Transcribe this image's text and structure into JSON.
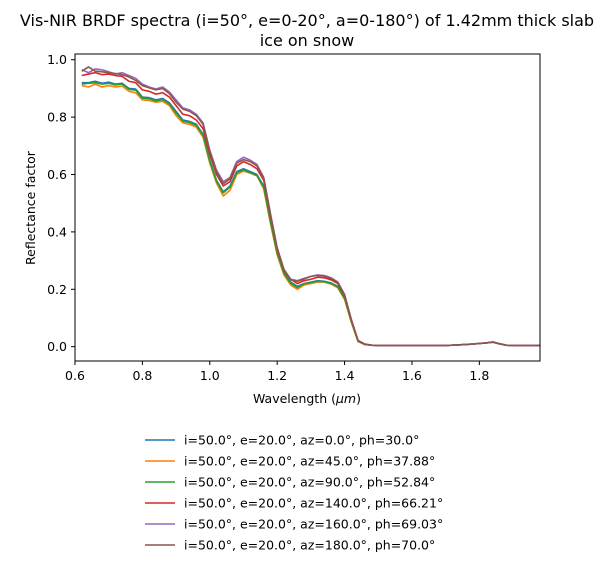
{
  "chart_data": {
    "type": "line",
    "title_lines": [
      "Vis-NIR BRDF spectra (i=50°, e=0-20°, a=0-180°) of 1.42mm thick slab",
      "ice on snow"
    ],
    "xlabel_prefix": "Wavelength (",
    "xlabel_unit": "μm",
    "xlabel_suffix": ")",
    "ylabel": "Reflectance factor",
    "xlim": [
      0.6,
      1.98
    ],
    "ylim": [
      -0.05,
      1.02
    ],
    "xticks": [
      0.6,
      0.8,
      1.0,
      1.2,
      1.4,
      1.6,
      1.8
    ],
    "xtick_labels": [
      "0.6",
      "0.8",
      "1.0",
      "1.2",
      "1.4",
      "1.6",
      "1.8"
    ],
    "yticks": [
      0.0,
      0.2,
      0.4,
      0.6,
      0.8,
      1.0
    ],
    "ytick_labels": [
      "0.0",
      "0.2",
      "0.4",
      "0.6",
      "0.8",
      "1.0"
    ],
    "grid": false,
    "legend_placement": "below",
    "x": [
      0.62,
      0.64,
      0.66,
      0.68,
      0.7,
      0.72,
      0.74,
      0.76,
      0.78,
      0.8,
      0.82,
      0.84,
      0.86,
      0.88,
      0.9,
      0.92,
      0.94,
      0.96,
      0.98,
      1.0,
      1.02,
      1.04,
      1.06,
      1.08,
      1.1,
      1.12,
      1.14,
      1.16,
      1.18,
      1.2,
      1.22,
      1.24,
      1.26,
      1.28,
      1.3,
      1.32,
      1.34,
      1.36,
      1.38,
      1.4,
      1.42,
      1.44,
      1.46,
      1.48,
      1.5,
      1.55,
      1.6,
      1.65,
      1.7,
      1.75,
      1.78,
      1.8,
      1.82,
      1.84,
      1.86,
      1.88,
      1.9,
      1.95,
      1.98
    ],
    "series": [
      {
        "name": "i=50.0°, e=20.0°, az=0.0°, ph=30.0°",
        "color": "#1f77b4",
        "values": [
          0.92,
          0.92,
          0.925,
          0.918,
          0.922,
          0.915,
          0.918,
          0.9,
          0.898,
          0.87,
          0.868,
          0.86,
          0.865,
          0.85,
          0.82,
          0.79,
          0.785,
          0.775,
          0.74,
          0.65,
          0.58,
          0.54,
          0.56,
          0.61,
          0.62,
          0.61,
          0.6,
          0.56,
          0.44,
          0.33,
          0.26,
          0.225,
          0.21,
          0.22,
          0.225,
          0.23,
          0.228,
          0.222,
          0.21,
          0.17,
          0.09,
          0.02,
          0.008,
          0.005,
          0.004,
          0.004,
          0.004,
          0.004,
          0.004,
          0.007,
          0.009,
          0.011,
          0.013,
          0.016,
          0.01,
          0.005,
          0.004,
          0.004,
          0.004
        ]
      },
      {
        "name": "i=50.0°, e=20.0°, az=45.0°, ph=37.88°",
        "color": "#ff7f0e",
        "values": [
          0.91,
          0.905,
          0.915,
          0.905,
          0.91,
          0.905,
          0.908,
          0.89,
          0.885,
          0.86,
          0.858,
          0.852,
          0.855,
          0.84,
          0.805,
          0.78,
          0.775,
          0.765,
          0.73,
          0.64,
          0.57,
          0.525,
          0.545,
          0.6,
          0.612,
          0.605,
          0.595,
          0.55,
          0.43,
          0.32,
          0.25,
          0.215,
          0.2,
          0.215,
          0.22,
          0.225,
          0.225,
          0.218,
          0.205,
          0.165,
          0.085,
          0.018,
          0.007,
          0.005,
          0.004,
          0.004,
          0.004,
          0.004,
          0.004,
          0.007,
          0.009,
          0.011,
          0.013,
          0.015,
          0.01,
          0.005,
          0.004,
          0.004,
          0.004
        ]
      },
      {
        "name": "i=50.0°, e=20.0°, az=90.0°, ph=52.84°",
        "color": "#2ca02c",
        "values": [
          0.915,
          0.918,
          0.92,
          0.915,
          0.918,
          0.912,
          0.915,
          0.897,
          0.894,
          0.866,
          0.864,
          0.856,
          0.861,
          0.846,
          0.814,
          0.786,
          0.781,
          0.771,
          0.736,
          0.646,
          0.576,
          0.536,
          0.556,
          0.606,
          0.616,
          0.606,
          0.596,
          0.556,
          0.436,
          0.326,
          0.256,
          0.221,
          0.206,
          0.219,
          0.223,
          0.228,
          0.226,
          0.22,
          0.208,
          0.168,
          0.088,
          0.019,
          0.008,
          0.005,
          0.004,
          0.004,
          0.004,
          0.004,
          0.004,
          0.007,
          0.009,
          0.011,
          0.013,
          0.016,
          0.01,
          0.005,
          0.004,
          0.004,
          0.004
        ]
      },
      {
        "name": "i=50.0°, e=20.0°, az=140.0°, ph=66.21°",
        "color": "#d62728",
        "values": [
          0.945,
          0.95,
          0.955,
          0.948,
          0.95,
          0.945,
          0.942,
          0.925,
          0.92,
          0.895,
          0.89,
          0.88,
          0.885,
          0.87,
          0.84,
          0.81,
          0.805,
          0.79,
          0.76,
          0.67,
          0.6,
          0.56,
          0.575,
          0.63,
          0.645,
          0.635,
          0.62,
          0.58,
          0.455,
          0.34,
          0.265,
          0.235,
          0.22,
          0.23,
          0.235,
          0.242,
          0.24,
          0.233,
          0.22,
          0.178,
          0.093,
          0.021,
          0.008,
          0.005,
          0.004,
          0.004,
          0.004,
          0.004,
          0.004,
          0.007,
          0.009,
          0.011,
          0.013,
          0.016,
          0.01,
          0.005,
          0.004,
          0.004,
          0.004
        ]
      },
      {
        "name": "i=50.0°, e=20.0°, az=160.0°, ph=69.03°",
        "color": "#9467bd",
        "values": [
          0.965,
          0.955,
          0.968,
          0.965,
          0.958,
          0.95,
          0.955,
          0.945,
          0.935,
          0.915,
          0.905,
          0.898,
          0.905,
          0.888,
          0.86,
          0.832,
          0.825,
          0.81,
          0.78,
          0.685,
          0.615,
          0.575,
          0.59,
          0.645,
          0.66,
          0.65,
          0.635,
          0.59,
          0.465,
          0.345,
          0.27,
          0.235,
          0.23,
          0.238,
          0.245,
          0.25,
          0.248,
          0.24,
          0.225,
          0.182,
          0.095,
          0.022,
          0.009,
          0.005,
          0.004,
          0.004,
          0.004,
          0.004,
          0.004,
          0.007,
          0.009,
          0.011,
          0.013,
          0.016,
          0.01,
          0.005,
          0.004,
          0.004,
          0.004
        ]
      },
      {
        "name": "i=50.0°, e=20.0°, az=180.0°, ph=70.0°",
        "color": "#8c564b",
        "values": [
          0.96,
          0.975,
          0.96,
          0.958,
          0.955,
          0.952,
          0.948,
          0.94,
          0.928,
          0.91,
          0.902,
          0.895,
          0.9,
          0.882,
          0.852,
          0.828,
          0.82,
          0.805,
          0.775,
          0.68,
          0.61,
          0.568,
          0.585,
          0.64,
          0.652,
          0.645,
          0.63,
          0.588,
          0.46,
          0.343,
          0.268,
          0.233,
          0.228,
          0.236,
          0.245,
          0.248,
          0.246,
          0.238,
          0.224,
          0.18,
          0.094,
          0.021,
          0.009,
          0.005,
          0.004,
          0.004,
          0.004,
          0.004,
          0.004,
          0.007,
          0.009,
          0.011,
          0.013,
          0.016,
          0.01,
          0.005,
          0.004,
          0.004,
          0.004
        ]
      }
    ]
  }
}
